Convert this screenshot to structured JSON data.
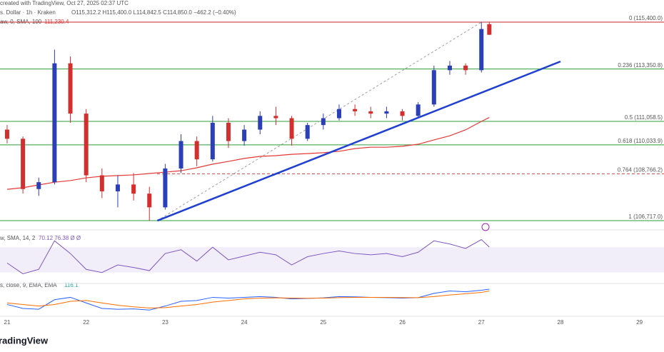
{
  "header": {
    "line1": "created with TradingView, Oct 27, 2025 02:37 UTC",
    "symbol": "s. Dollar · 1h · Kraken",
    "ohlc": "O115,312.2 H115,400.0 L114,842.5 C114,850.0 −462.2 (−0.40%)",
    "study": "aw, 0, SMA, 100",
    "study_value": "111,230.4",
    "rsi_title": "w, SMA, 14, 2",
    "rsi_values": "70.12  76.38  Ø  Ø",
    "macd_title": "s, close, 9, EMA, EMA",
    "macd_hist": "116.1",
    "footer": "radingView"
  },
  "chart_data": [
    {
      "type": "candlestick",
      "xlim": [
        20.91,
        29.31
      ],
      "xticks": [
        21,
        22,
        23,
        24,
        25,
        26,
        27,
        28,
        29
      ],
      "ylim": [
        106375,
        116370
      ],
      "x": [
        21.0,
        21.2,
        21.4,
        21.6,
        21.8,
        22.0,
        22.2,
        22.4,
        22.6,
        22.8,
        23.0,
        23.2,
        23.4,
        23.6,
        23.8,
        24.0,
        24.2,
        24.4,
        24.6,
        24.8,
        25.0,
        25.2,
        25.4,
        25.6,
        25.8,
        26.0,
        26.2,
        26.4,
        26.6,
        26.8,
        27.0,
        27.1
      ],
      "open": [
        110700,
        110300,
        108100,
        108400,
        113600,
        111400,
        108700,
        108000,
        108300,
        107900,
        107300,
        109000,
        110200,
        109400,
        111000,
        110200,
        110700,
        111300,
        111200,
        110300,
        110900,
        111200,
        111600,
        111500,
        111400,
        111500,
        111300,
        111800,
        113300,
        113500,
        113300,
        115312.2
      ],
      "high": [
        110900,
        110400,
        108600,
        114200,
        113900,
        111600,
        109000,
        108700,
        108800,
        108200,
        109200,
        110500,
        110400,
        111300,
        111200,
        110900,
        111500,
        111700,
        111300,
        111000,
        111400,
        111800,
        111800,
        111700,
        111700,
        111600,
        111900,
        113500,
        113700,
        113600,
        115400,
        115400
      ],
      "low": [
        110100,
        107900,
        107800,
        108300,
        111000,
        108400,
        107700,
        107300,
        107600,
        106717,
        107200,
        108800,
        109100,
        109300,
        109900,
        110000,
        110500,
        110900,
        110000,
        110200,
        110700,
        111100,
        111300,
        111200,
        111200,
        111100,
        111200,
        111700,
        113100,
        113100,
        113200,
        114842.5
      ],
      "close": [
        110300,
        108100,
        108400,
        113600,
        111400,
        108700,
        108000,
        108300,
        107900,
        107300,
        109000,
        110200,
        109400,
        111000,
        110200,
        110700,
        111300,
        111200,
        110300,
        110900,
        111200,
        111600,
        111500,
        111400,
        111500,
        111300,
        111800,
        113300,
        113500,
        113300,
        115100,
        114850
      ],
      "up_color": "#2b3fb8",
      "down_color": "#d32f2f",
      "sma": {
        "color": "#e53935",
        "values": [
          108090,
          108160,
          108280,
          108400,
          108470,
          108590,
          108660,
          108690,
          108720,
          108780,
          108840,
          108900,
          109030,
          109190,
          109310,
          109440,
          109530,
          109560,
          109620,
          109650,
          109690,
          109750,
          109870,
          109930,
          109930,
          109970,
          110060,
          110250,
          110430,
          110690,
          111060,
          111230.4
        ]
      },
      "levels": [
        {
          "value": 115400,
          "label": "0 (115,400.0)",
          "color": "#c62828",
          "style": "solid"
        },
        {
          "value": 113350.8,
          "label": "0.236 (113,350.8)",
          "color": "#2e9d3a",
          "style": "solid"
        },
        {
          "value": 111058.5,
          "label": "0.5 (111,058.5)",
          "color": "#2e9d3a",
          "style": "solid"
        },
        {
          "value": 110033.9,
          "label": "0.618 (110,033.9)",
          "color": "#2e9d3a",
          "style": "solid"
        },
        {
          "value": 108766.2,
          "label": "0.764 (108,766.2)",
          "color": "#d05050",
          "style": "dashed"
        },
        {
          "value": 106717,
          "label": "1 (106,717.0)",
          "color": "#2e9d3a",
          "style": "solid"
        }
      ],
      "trendline": {
        "x": [
          22.9,
          28.0
        ],
        "y": [
          106717,
          113680
        ],
        "color": "#1f3fd1"
      },
      "fib_diagonal": {
        "x": [
          22.9,
          27.0
        ],
        "y": [
          106717,
          115400
        ],
        "color": "#9e9e9e"
      }
    },
    {
      "type": "line",
      "ylim": [
        15,
        95
      ],
      "band": [
        30,
        70
      ],
      "color": "#7e57c2",
      "values": [
        45,
        28,
        35,
        80,
        60,
        35,
        30,
        42,
        38,
        33,
        60,
        66,
        48,
        70,
        50,
        56,
        62,
        58,
        42,
        55,
        60,
        64,
        60,
        58,
        60,
        55,
        62,
        80,
        75,
        68,
        82,
        70.12
      ]
    },
    {
      "type": "line",
      "ylim": [
        -900,
        900
      ],
      "series": [
        {
          "color": "#2962ff",
          "values": [
            -200,
            -450,
            -500,
            100,
            250,
            -100,
            -450,
            -500,
            -480,
            -550,
            -300,
            0,
            50,
            250,
            200,
            250,
            300,
            250,
            150,
            180,
            220,
            300,
            280,
            250,
            230,
            200,
            230,
            500,
            650,
            600,
            700,
            767.5
          ]
        },
        {
          "color": "#ff6d00",
          "values": [
            -100,
            -200,
            -300,
            -200,
            0,
            50,
            -100,
            -250,
            -350,
            -420,
            -400,
            -300,
            -200,
            -50,
            50,
            150,
            200,
            220,
            200,
            190,
            200,
            230,
            250,
            250,
            245,
            235,
            230,
            300,
            400,
            480,
            560,
            651.4
          ]
        }
      ]
    }
  ]
}
